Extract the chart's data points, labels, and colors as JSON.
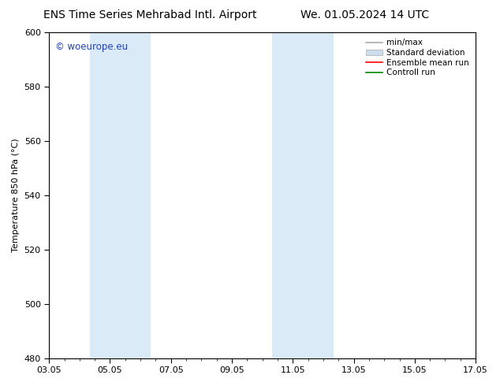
{
  "title_left": "ENS Time Series Mehrabad Intl. Airport",
  "title_right": "We. 01.05.2024 14 UTC",
  "ylabel": "Temperature 850 hPa (°C)",
  "ylim": [
    480,
    600
  ],
  "yticks": [
    480,
    500,
    520,
    540,
    560,
    580,
    600
  ],
  "xtick_labels": [
    "03.05",
    "05.05",
    "07.05",
    "09.05",
    "11.05",
    "13.05",
    "15.05",
    "17.05"
  ],
  "xtick_positions": [
    0,
    2,
    4,
    6,
    8,
    10,
    12,
    14
  ],
  "xlim": [
    0,
    14
  ],
  "shaded_bands": [
    {
      "x_start": 1.33,
      "x_end": 3.33,
      "color": "#daeaf7"
    },
    {
      "x_start": 7.33,
      "x_end": 9.33,
      "color": "#daeaf7"
    }
  ],
  "watermark_text": "© woeurope.eu",
  "watermark_color": "#1e40c8",
  "legend_entries": [
    {
      "label": "min/max",
      "color": "#aaaaaa",
      "lw": 1.2,
      "type": "line"
    },
    {
      "label": "Standard deviation",
      "color": "#ccddee",
      "lw": 8,
      "type": "band"
    },
    {
      "label": "Ensemble mean run",
      "color": "#ff0000",
      "lw": 1.2,
      "type": "line"
    },
    {
      "label": "Controll run",
      "color": "#008800",
      "lw": 1.2,
      "type": "line"
    }
  ],
  "bg_color": "#ffffff",
  "plot_bg_color": "#ffffff",
  "grid_color": "#dddddd",
  "title_fontsize": 10,
  "label_fontsize": 8,
  "tick_fontsize": 8,
  "legend_fontsize": 7.5
}
